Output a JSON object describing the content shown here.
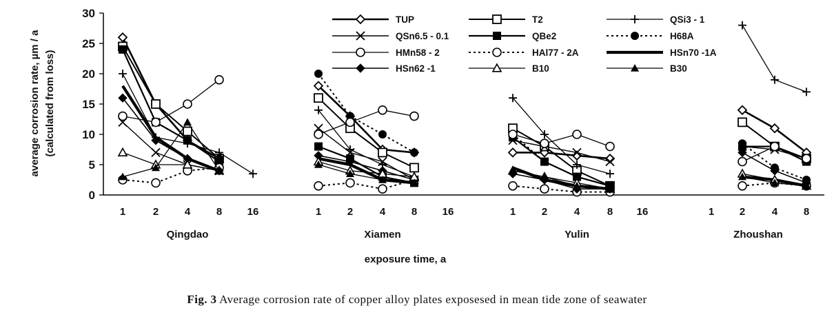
{
  "chart_data": {
    "type": "line",
    "ylabel_line1": "average corrosion rate, µm / a",
    "ylabel_line2": "(calculated from loss)",
    "xlabel": "exposure time, a",
    "ylim": [
      0,
      30
    ],
    "yticks": [
      "0",
      "5",
      "10",
      "15",
      "20",
      "25",
      "30"
    ],
    "grid": false,
    "legend_position": "top-center",
    "sites": [
      {
        "name": "Qingdao",
        "ticks": [
          "1",
          "2",
          "4",
          "8",
          "16"
        ]
      },
      {
        "name": "Xiamen",
        "ticks": [
          "1",
          "2",
          "4",
          "8",
          "16"
        ]
      },
      {
        "name": "Yulin",
        "ticks": [
          "1",
          "2",
          "4",
          "8",
          "16"
        ]
      },
      {
        "name": "Zhoushan",
        "ticks": [
          "1",
          "2",
          "4",
          "8"
        ]
      }
    ],
    "series": [
      {
        "name": "TUP",
        "values": {
          "Qingdao": [
            26,
            15,
            9,
            6,
            null
          ],
          "Xiamen": [
            18,
            13,
            7.5,
            7,
            null
          ],
          "Yulin": [
            7,
            7,
            6.5,
            6,
            null
          ],
          "Zhoushan": [
            null,
            14,
            11,
            7
          ]
        }
      },
      {
        "name": "T2",
        "values": {
          "Qingdao": [
            24.5,
            15,
            10.5,
            6,
            null
          ],
          "Xiamen": [
            16,
            11,
            7,
            4.5,
            null
          ],
          "Yulin": [
            11,
            8,
            4,
            1.5,
            null
          ],
          "Zhoushan": [
            null,
            12,
            8,
            6
          ]
        }
      },
      {
        "name": "QSi3 - 1",
        "values": {
          "Qingdao": [
            20,
            9.5,
            8.5,
            7,
            3.5
          ],
          "Xiamen": [
            14,
            7.5,
            5,
            3,
            null
          ],
          "Yulin": [
            16,
            10,
            5,
            3.5,
            null
          ],
          "Zhoushan": [
            null,
            28,
            19,
            17
          ]
        }
      },
      {
        "name": "QSn6.5 - 0.1",
        "values": {
          "Qingdao": [
            12,
            7,
            5,
            4,
            null
          ],
          "Xiamen": [
            11,
            7,
            5.5,
            2.5,
            null
          ],
          "Yulin": [
            9,
            8,
            7,
            5.5,
            null
          ],
          "Zhoushan": [
            null,
            8,
            7.5,
            6
          ]
        }
      },
      {
        "name": "QBe2",
        "values": {
          "Qingdao": [
            24,
            12,
            9,
            5.5,
            null
          ],
          "Xiamen": [
            8,
            6,
            3,
            2,
            null
          ],
          "Yulin": [
            9.5,
            5.5,
            3,
            1.5,
            null
          ],
          "Zhoushan": [
            null,
            8,
            8,
            5.5
          ]
        }
      },
      {
        "name": "H68A",
        "values": {
          "Qingdao": [
            24,
            12,
            9,
            6,
            null
          ],
          "Xiamen": [
            20,
            13,
            10,
            7,
            null
          ],
          "Yulin": [
            10,
            5.5,
            3,
            1.5,
            null
          ],
          "Zhoushan": [
            null,
            8.5,
            4.5,
            2.5
          ]
        }
      },
      {
        "name": "HMn58 - 2",
        "values": {
          "Qingdao": [
            13,
            12,
            15,
            19,
            null
          ],
          "Xiamen": [
            10,
            12,
            14,
            13,
            null
          ],
          "Yulin": [
            10,
            8.5,
            10,
            8,
            null
          ],
          "Zhoushan": [
            null,
            5.5,
            8,
            6
          ]
        }
      },
      {
        "name": "HAl77 - 2A",
        "values": {
          "Qingdao": [
            2.5,
            2,
            4,
            4.5,
            null
          ],
          "Xiamen": [
            1.5,
            2,
            1,
            2.5,
            null
          ],
          "Yulin": [
            1.5,
            1,
            0.5,
            0.5,
            null
          ],
          "Zhoushan": [
            null,
            1.5,
            2,
            1.5
          ]
        }
      },
      {
        "name": "HSn70 -1A",
        "values": {
          "Qingdao": [
            18,
            9.5,
            6,
            4,
            null
          ],
          "Xiamen": [
            6,
            5,
            2.5,
            2,
            null
          ],
          "Yulin": [
            4.5,
            2.5,
            1.5,
            1,
            null
          ],
          "Zhoushan": [
            null,
            3,
            2.5,
            1.5
          ]
        }
      },
      {
        "name": "HSn62 -1",
        "values": {
          "Qingdao": [
            16,
            9,
            6,
            4,
            null
          ],
          "Xiamen": [
            6.5,
            5.5,
            4,
            2.5,
            null
          ],
          "Yulin": [
            3.5,
            2.5,
            1,
            1,
            null
          ],
          "Zhoushan": [
            null,
            7,
            4,
            2
          ]
        }
      },
      {
        "name": "B10",
        "values": {
          "Qingdao": [
            7,
            5,
            5,
            4,
            null
          ],
          "Xiamen": [
            5.5,
            4,
            3.5,
            3,
            null
          ],
          "Yulin": [
            4,
            3,
            2,
            1,
            null
          ],
          "Zhoushan": [
            null,
            3.5,
            2.5,
            1.5
          ]
        }
      },
      {
        "name": "B30",
        "values": {
          "Qingdao": [
            3,
            4.5,
            12,
            4,
            null
          ],
          "Xiamen": [
            5,
            3.5,
            2.5,
            2,
            null
          ],
          "Yulin": [
            4,
            3,
            1.5,
            1,
            null
          ],
          "Zhoushan": [
            null,
            3,
            2,
            1.5
          ]
        }
      }
    ]
  },
  "caption": {
    "label": "Fig. 3",
    "text": "Average corrosion rate of copper alloy plates exposesed in mean tide zone of seawater"
  }
}
